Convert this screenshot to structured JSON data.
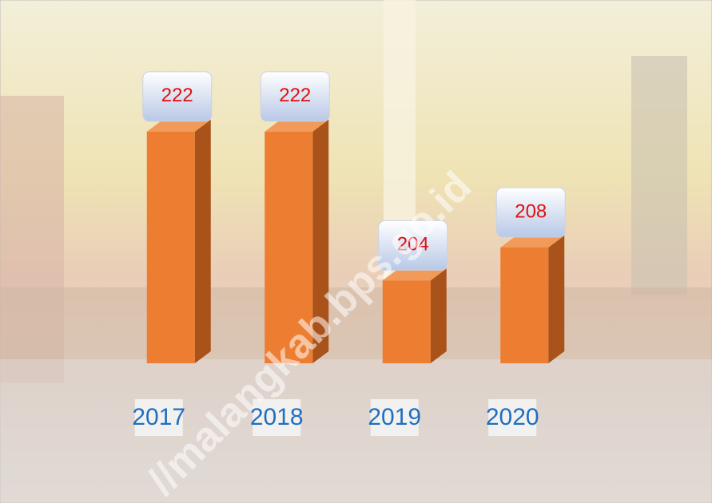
{
  "chart_data": {
    "type": "bar3d",
    "categories": [
      "2017",
      "2018",
      "2019",
      "2020"
    ],
    "values": [
      222,
      222,
      204,
      208
    ],
    "color": "#ed7d31",
    "ylim": [
      194,
      230
    ],
    "grid": false,
    "watermark": "//malangkab.bps.go.id"
  }
}
